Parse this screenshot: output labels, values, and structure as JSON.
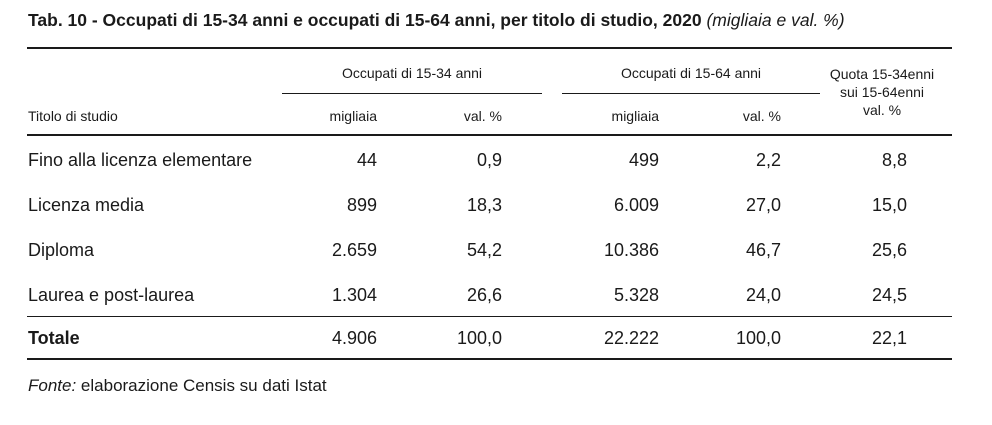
{
  "title": {
    "main": "Tab. 10 - Occupati di 15-34 anni e occupati di 15-64 anni, per titolo di studio, 2020",
    "unit": "(migliaia e val. %)"
  },
  "header": {
    "row_label": "Titolo di studio",
    "group1": "Occupati di 15-34 anni",
    "group2": "Occupati di 15-64 anni",
    "quota_line1": "Quota 15-34enni",
    "quota_line2": "sui 15-64enni",
    "col_migliaia": "migliaia",
    "col_val": "val. %"
  },
  "rows": [
    {
      "label": "Fino alla licenza elementare",
      "occ1534_migliaia": "44",
      "occ1534_val": "0,9",
      "occ1564_migliaia": "499",
      "occ1564_val": "2,2",
      "quota": "8,8"
    },
    {
      "label": "Licenza media",
      "occ1534_migliaia": "899",
      "occ1534_val": "18,3",
      "occ1564_migliaia": "6.009",
      "occ1564_val": "27,0",
      "quota": "15,0"
    },
    {
      "label": "Diploma",
      "occ1534_migliaia": "2.659",
      "occ1534_val": "54,2",
      "occ1564_migliaia": "10.386",
      "occ1564_val": "46,7",
      "quota": "25,6"
    },
    {
      "label": "Laurea e post-laurea",
      "occ1534_migliaia": "1.304",
      "occ1534_val": "26,6",
      "occ1564_migliaia": "5.328",
      "occ1564_val": "24,0",
      "quota": "24,5"
    }
  ],
  "total": {
    "label": "Totale",
    "occ1534_migliaia": "4.906",
    "occ1534_val": "100,0",
    "occ1564_migliaia": "22.222",
    "occ1564_val": "100,0",
    "quota": "22,1"
  },
  "source": {
    "label": "Fonte:",
    "text": " elaborazione Censis su dati Istat"
  }
}
